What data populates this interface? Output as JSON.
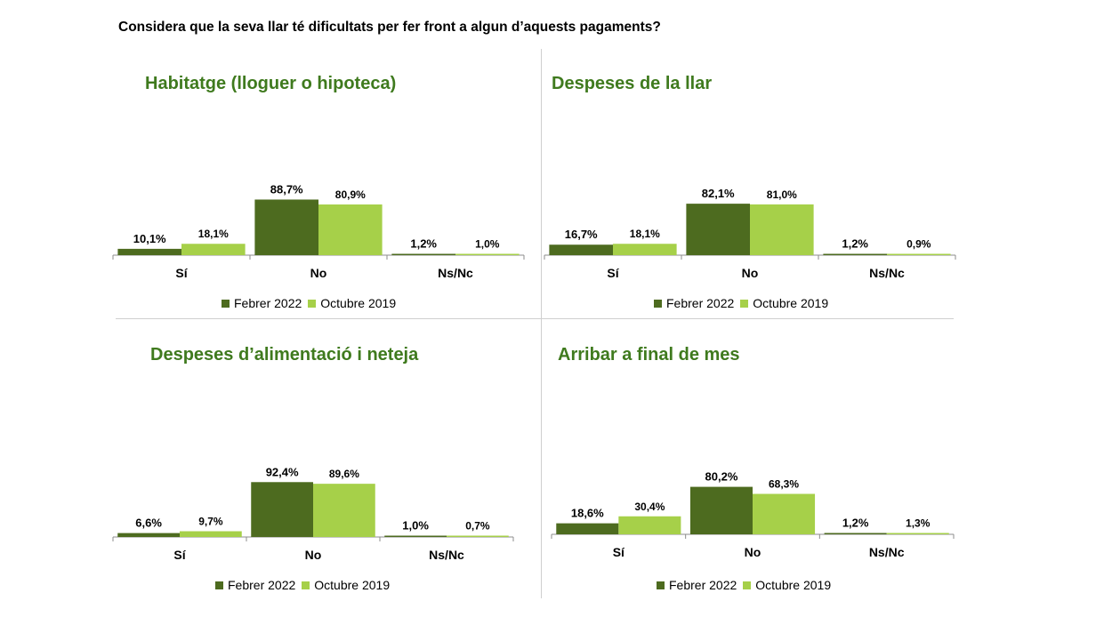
{
  "title": "Considera que la seva llar té dificultats per fer front a algun d’aquests pagaments?",
  "colors": {
    "series1": "#4d6b1f",
    "series2": "#a6d049",
    "title": "#3f7a1e",
    "axis": "#8c8c8c"
  },
  "chart_data": [
    {
      "type": "bar",
      "title": "Habitatge (lloguer o hipoteca)",
      "categories": [
        "Sí",
        "No",
        "Ns/Nc"
      ],
      "series": [
        {
          "name": "Febrer 2022",
          "values": [
            10.1,
            88.7,
            1.2
          ],
          "labels": [
            "10,1%",
            "88,7%",
            "1,2%"
          ]
        },
        {
          "name": "Octubre 2019",
          "values": [
            18.1,
            80.9,
            1.0
          ],
          "labels": [
            "18,1%",
            "80,9%",
            "1,0%"
          ]
        }
      ],
      "ylim": [
        0,
        100
      ]
    },
    {
      "type": "bar",
      "title": "Despeses de la llar",
      "categories": [
        "Sí",
        "No",
        "Ns/Nc"
      ],
      "series": [
        {
          "name": "Febrer 2022",
          "values": [
            16.7,
            82.1,
            1.2
          ],
          "labels": [
            "16,7%",
            "82,1%",
            "1,2%"
          ]
        },
        {
          "name": "Octubre 2019",
          "values": [
            18.1,
            81.0,
            0.9
          ],
          "labels": [
            "18,1%",
            "81,0%",
            "0,9%"
          ]
        }
      ],
      "ylim": [
        0,
        100
      ]
    },
    {
      "type": "bar",
      "title": "Despeses d’alimentació i neteja",
      "categories": [
        "Sí",
        "No",
        "Ns/Nc"
      ],
      "series": [
        {
          "name": "Febrer 2022",
          "values": [
            6.6,
            92.4,
            1.0
          ],
          "labels": [
            "6,6%",
            "92,4%",
            "1,0%"
          ]
        },
        {
          "name": "Octubre 2019",
          "values": [
            9.7,
            89.6,
            0.7
          ],
          "labels": [
            "9,7%",
            "89,6%",
            "0,7%"
          ]
        }
      ],
      "ylim": [
        0,
        100
      ]
    },
    {
      "type": "bar",
      "title": "Arribar a final de mes",
      "categories": [
        "Sí",
        "No",
        "Ns/Nc"
      ],
      "series": [
        {
          "name": "Febrer 2022",
          "values": [
            18.6,
            80.2,
            1.2
          ],
          "labels": [
            "18,6%",
            "80,2%",
            "1,2%"
          ]
        },
        {
          "name": "Octubre 2019",
          "values": [
            30.4,
            68.3,
            1.3
          ],
          "labels": [
            "30,4%",
            "68,3%",
            "1,3%"
          ]
        }
      ],
      "ylim": [
        0,
        100
      ]
    }
  ]
}
